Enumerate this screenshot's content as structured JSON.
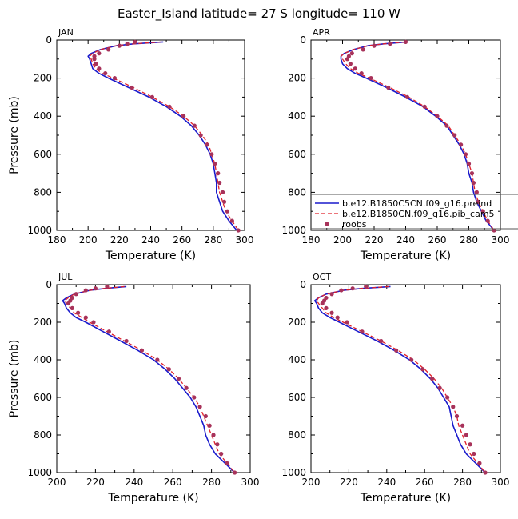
{
  "title": "Easter_Island   latitude= 27 S longitude= 110 W",
  "colors": {
    "model1": "#1a1acc",
    "model2": "#e0202a",
    "obs": "#a8325a"
  },
  "legend": {
    "entries": [
      {
        "label": "b.e12.B1850C5CN.f09_g16.preind",
        "style": "solid-line"
      },
      {
        "label": "b.e12.B1850CN.f09_g16.pib_cam5",
        "style": "dashed-line"
      },
      {
        "label": "roobs",
        "style": "dot"
      }
    ]
  },
  "chart_data": [
    {
      "type": "line",
      "month": "JAN",
      "xlabel": "Temperature (K)",
      "ylabel": "Pressure (mb)",
      "xlim": [
        180,
        300
      ],
      "ylim": [
        0,
        1000
      ],
      "y_reversed": true,
      "xticks": [
        180,
        200,
        220,
        240,
        260,
        280,
        300
      ],
      "yticks": [
        0,
        200,
        400,
        600,
        800,
        1000
      ],
      "pressure": [
        10,
        20,
        30,
        50,
        70,
        85,
        100,
        125,
        150,
        175,
        200,
        250,
        300,
        350,
        400,
        450,
        500,
        550,
        600,
        650,
        700,
        750,
        800,
        850,
        900,
        950,
        1000
      ],
      "series": [
        {
          "name": "b.e12.B1850C5CN.f09_g16.preind",
          "style": "solid",
          "values": [
            248,
            229,
            218,
            208,
            202,
            200,
            201,
            202,
            203,
            207,
            213,
            226,
            239,
            250,
            259,
            266,
            271,
            275,
            278,
            280,
            281,
            282,
            282,
            284,
            286,
            290,
            295
          ]
        },
        {
          "name": "b.e12.B1850CN.f09_g16.pib_cam5",
          "style": "dashed",
          "values": [
            247,
            229,
            218,
            208,
            203,
            201,
            202,
            203,
            205,
            209,
            216,
            229,
            241,
            252,
            261,
            268,
            273,
            277,
            279,
            281,
            282,
            283,
            284,
            286,
            288,
            292,
            296
          ]
        },
        {
          "name": "roobs",
          "style": "dots",
          "values": [
            230,
            225,
            220,
            213,
            207,
            204,
            204,
            205,
            207,
            211,
            217,
            228,
            241,
            252,
            261,
            268,
            272,
            276,
            279,
            281,
            283,
            284,
            286,
            287,
            289,
            292,
            296
          ]
        }
      ]
    },
    {
      "type": "line",
      "month": "APR",
      "xlabel": "Temperature (K)",
      "ylabel": "",
      "xlim": [
        180,
        300
      ],
      "ylim": [
        0,
        1000
      ],
      "y_reversed": true,
      "xticks": [
        180,
        200,
        220,
        240,
        260,
        280,
        300
      ],
      "yticks": [
        0,
        200,
        400,
        600,
        800,
        1000
      ],
      "pressure": [
        10,
        20,
        30,
        50,
        70,
        85,
        100,
        125,
        150,
        175,
        200,
        250,
        300,
        350,
        400,
        450,
        500,
        550,
        600,
        650,
        700,
        750,
        800,
        850,
        900,
        950,
        1000
      ],
      "series": [
        {
          "name": "b.e12.B1850C5CN.f09_g16.preind",
          "style": "solid",
          "values": [
            241,
            226,
            216,
            207,
            201,
            199,
            199,
            200,
            203,
            208,
            215,
            228,
            240,
            251,
            259,
            266,
            270,
            274,
            277,
            279,
            280,
            282,
            283,
            285,
            288,
            291,
            296
          ]
        },
        {
          "name": "b.e12.B1850CN.f09_g16.pib_cam5",
          "style": "dashed",
          "values": [
            240,
            226,
            216,
            207,
            201,
            199,
            200,
            202,
            205,
            210,
            217,
            230,
            242,
            252,
            260,
            267,
            271,
            275,
            278,
            280,
            282,
            283,
            284,
            286,
            289,
            292,
            296
          ]
        },
        {
          "name": "roobs",
          "style": "dots",
          "values": [
            240,
            230,
            220,
            213,
            206,
            204,
            203,
            205,
            208,
            212,
            218,
            229,
            241,
            252,
            260,
            266,
            271,
            275,
            278,
            280,
            282,
            283,
            285,
            286,
            289,
            292,
            296
          ]
        }
      ]
    },
    {
      "type": "line",
      "month": "JUL",
      "xlabel": "Temperature (K)",
      "ylabel": "Pressure (mb)",
      "xlim": [
        200,
        300
      ],
      "ylim": [
        0,
        1000
      ],
      "y_reversed": true,
      "xticks": [
        200,
        220,
        240,
        260,
        280,
        300
      ],
      "yticks": [
        0,
        200,
        400,
        600,
        800,
        1000
      ],
      "pressure": [
        10,
        20,
        30,
        50,
        70,
        85,
        100,
        125,
        150,
        175,
        200,
        250,
        300,
        350,
        400,
        450,
        500,
        550,
        600,
        650,
        700,
        750,
        800,
        850,
        900,
        950,
        1000
      ],
      "series": [
        {
          "name": "b.e12.B1850C5CN.f09_g16.preind",
          "style": "solid",
          "values": [
            236,
            225,
            217,
            209,
            205,
            203,
            204,
            205,
            207,
            210,
            215,
            224,
            233,
            242,
            250,
            256,
            261,
            265,
            269,
            272,
            274,
            276,
            277,
            279,
            282,
            287,
            292
          ]
        },
        {
          "name": "b.e12.B1850CN.f09_g16.pib_cam5",
          "style": "dashed",
          "values": [
            235,
            225,
            217,
            209,
            206,
            204,
            205,
            207,
            209,
            213,
            217,
            226,
            235,
            244,
            252,
            258,
            263,
            267,
            271,
            274,
            276,
            278,
            280,
            282,
            284,
            288,
            292
          ]
        },
        {
          "name": "roobs",
          "style": "dots",
          "values": [
            226,
            220,
            215,
            210,
            208,
            207,
            206,
            208,
            211,
            215,
            219,
            227,
            236,
            244,
            252,
            258,
            263,
            267,
            271,
            274,
            277,
            279,
            281,
            283,
            285,
            288,
            292
          ]
        }
      ]
    },
    {
      "type": "line",
      "month": "OCT",
      "xlabel": "Temperature (K)",
      "ylabel": "",
      "xlim": [
        200,
        300
      ],
      "ylim": [
        0,
        1000
      ],
      "y_reversed": true,
      "xticks": [
        200,
        220,
        240,
        260,
        280,
        300
      ],
      "yticks": [
        0,
        200,
        400,
        600,
        800,
        1000
      ],
      "pressure": [
        10,
        20,
        30,
        50,
        70,
        85,
        100,
        125,
        150,
        175,
        200,
        250,
        300,
        350,
        400,
        450,
        500,
        550,
        600,
        650,
        700,
        750,
        800,
        850,
        900,
        950,
        1000
      ],
      "series": [
        {
          "name": "b.e12.B1850C5CN.f09_g16.preind",
          "style": "solid",
          "values": [
            242,
            227,
            217,
            208,
            204,
            202,
            203,
            204,
            206,
            210,
            215,
            225,
            235,
            244,
            252,
            258,
            263,
            267,
            270,
            273,
            274,
            275,
            277,
            279,
            282,
            287,
            292
          ]
        },
        {
          "name": "b.e12.B1850CN.f09_g16.pib_cam5",
          "style": "dashed",
          "values": [
            241,
            227,
            217,
            208,
            204,
            203,
            204,
            206,
            208,
            212,
            217,
            227,
            237,
            246,
            254,
            260,
            265,
            269,
            272,
            275,
            277,
            278,
            280,
            282,
            284,
            288,
            292
          ]
        },
        {
          "name": "roobs",
          "style": "dots",
          "values": [
            229,
            222,
            216,
            211,
            208,
            207,
            206,
            208,
            211,
            214,
            219,
            227,
            237,
            245,
            253,
            259,
            264,
            268,
            272,
            275,
            277,
            280,
            282,
            284,
            286,
            289,
            292
          ]
        }
      ]
    }
  ]
}
